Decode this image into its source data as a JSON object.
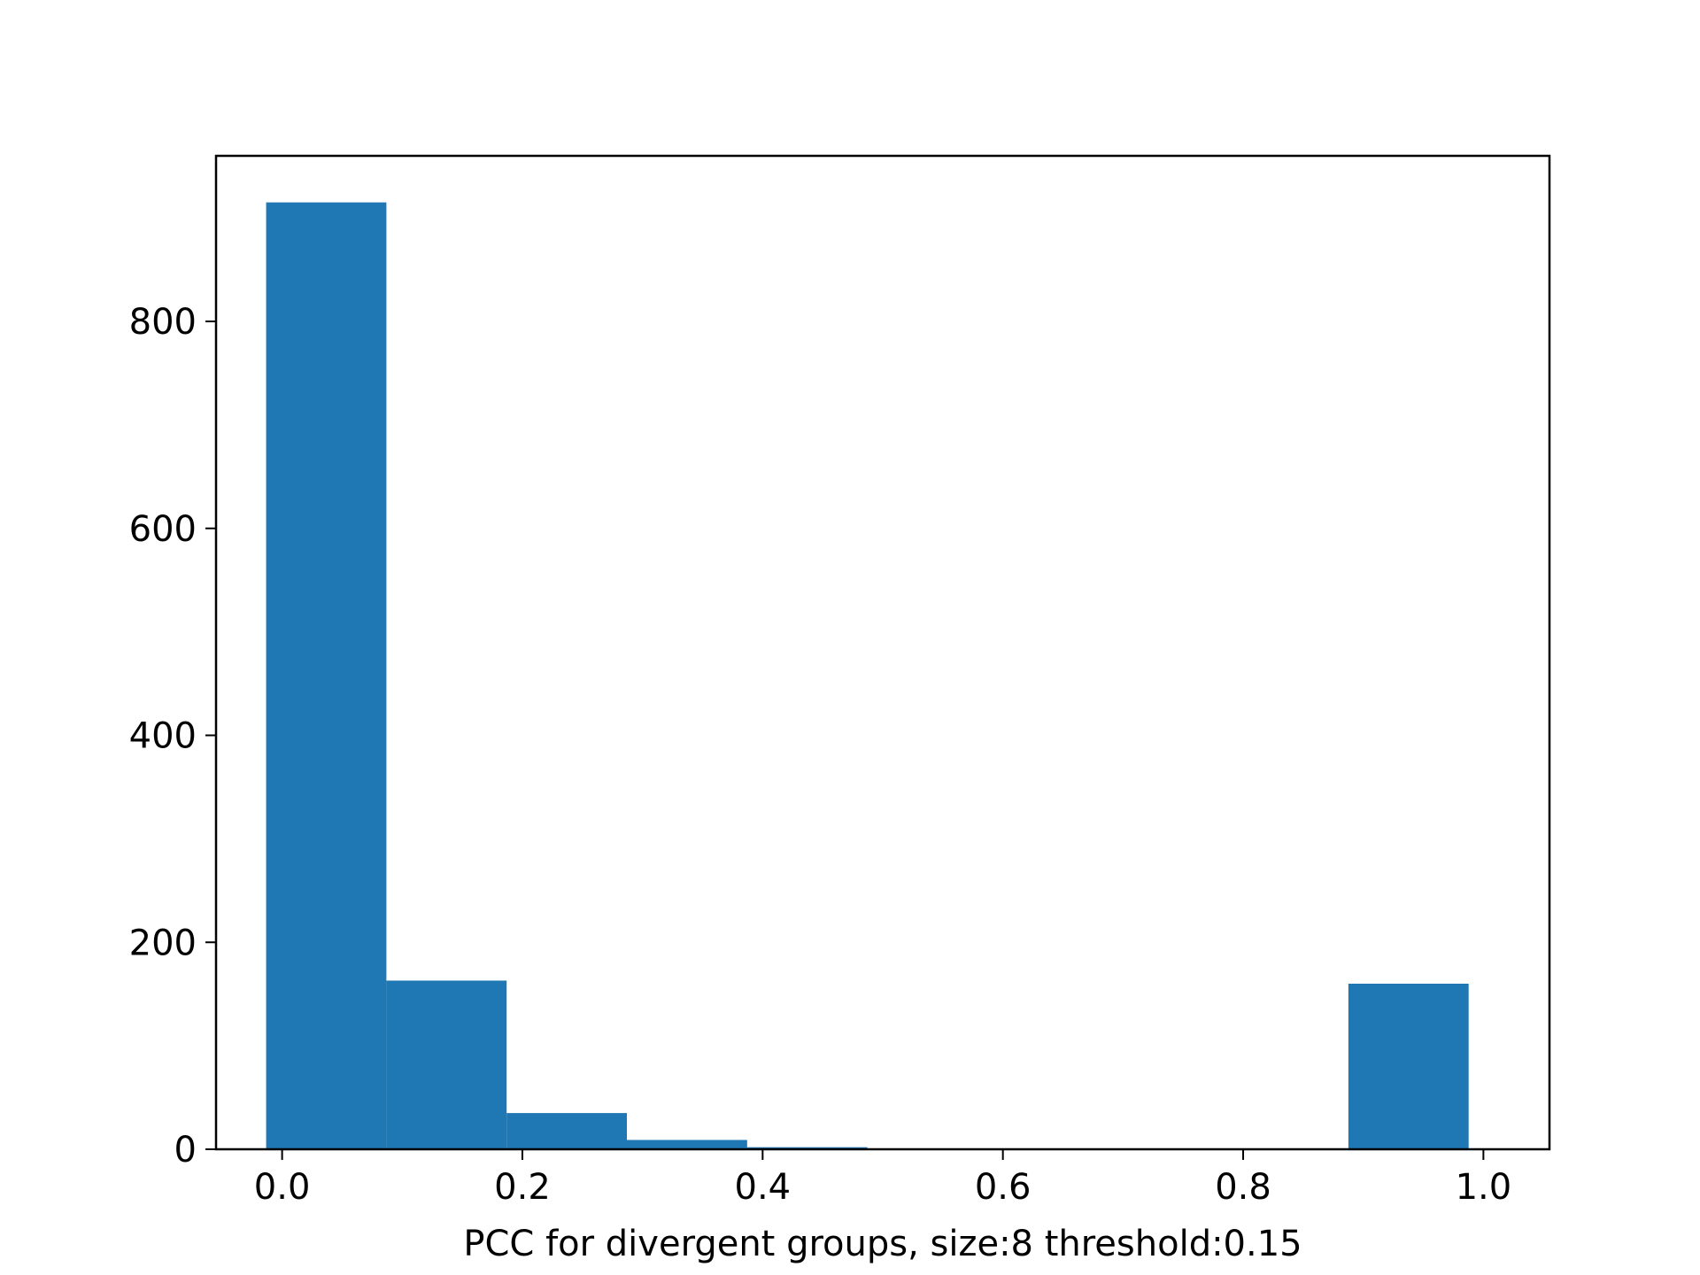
{
  "chart_data": {
    "type": "bar",
    "title": "",
    "xlabel": "PCC for divergent groups, size:8 threshold:0.15",
    "ylabel": "",
    "xlim": [
      -0.055,
      1.055
    ],
    "ylim": [
      0,
      960
    ],
    "grid": false,
    "legend": "none",
    "bar_color": "#1f77b4",
    "bins": [
      {
        "x0": -0.0133,
        "x1": 0.0868,
        "count": 915
      },
      {
        "x0": 0.0868,
        "x1": 0.1869,
        "count": 163
      },
      {
        "x0": 0.1869,
        "x1": 0.287,
        "count": 35
      },
      {
        "x0": 0.287,
        "x1": 0.3871,
        "count": 9
      },
      {
        "x0": 0.3871,
        "x1": 0.4872,
        "count": 2
      },
      {
        "x0": 0.4872,
        "x1": 0.5873,
        "count": 0
      },
      {
        "x0": 0.5873,
        "x1": 0.6874,
        "count": 0
      },
      {
        "x0": 0.6874,
        "x1": 0.7875,
        "count": 0
      },
      {
        "x0": 0.7875,
        "x1": 0.8876,
        "count": 0
      },
      {
        "x0": 0.8876,
        "x1": 0.9877,
        "count": 160
      }
    ],
    "xticks": [
      {
        "value": 0.0,
        "label": "0.0"
      },
      {
        "value": 0.2,
        "label": "0.2"
      },
      {
        "value": 0.4,
        "label": "0.4"
      },
      {
        "value": 0.6,
        "label": "0.6"
      },
      {
        "value": 0.8,
        "label": "0.8"
      },
      {
        "value": 1.0,
        "label": "1.0"
      }
    ],
    "yticks": [
      {
        "value": 0,
        "label": "0"
      },
      {
        "value": 200,
        "label": "200"
      },
      {
        "value": 400,
        "label": "400"
      },
      {
        "value": 600,
        "label": "600"
      },
      {
        "value": 800,
        "label": "800"
      }
    ]
  }
}
